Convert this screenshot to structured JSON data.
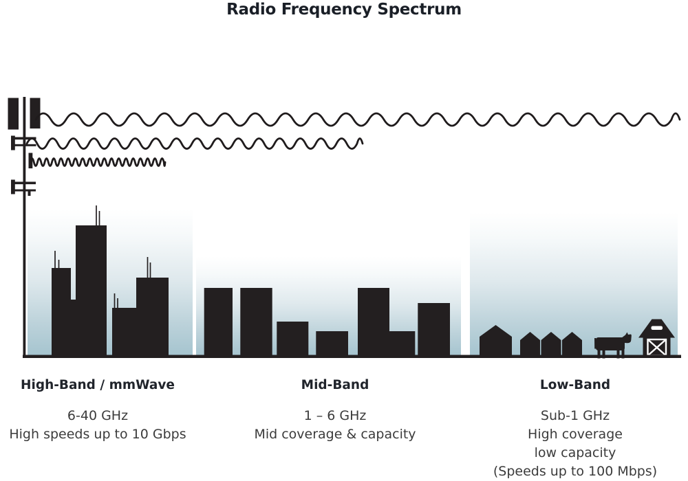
{
  "title": "Radio Frequency Spectrum",
  "bands": [
    {
      "id": "high-band",
      "label": "High-Band / mmWave",
      "lines": [
        "6-40 GHz",
        "High speeds up to 10 Gbps"
      ]
    },
    {
      "id": "mid-band",
      "label": "Mid-Band",
      "lines": [
        "1 – 6 GHz",
        "Mid coverage & capacity"
      ]
    },
    {
      "id": "low-band",
      "label": "Low-Band",
      "lines": [
        "Sub-1 GHz",
        "High coverage",
        "low capacity",
        "(Speeds up to 100 Mbps)"
      ]
    }
  ],
  "icons": {
    "tower": "cell-tower-icon",
    "waves": [
      "long-wavelength-wave-icon",
      "medium-wavelength-wave-icon",
      "short-wavelength-wave-icon"
    ],
    "high_band_art": "skyscrapers-icon",
    "mid_band_art": "midrise-buildings-icon",
    "low_band_art": [
      "houses-icon",
      "cow-icon",
      "barn-icon"
    ]
  },
  "colors": {
    "silhouette": "#231f20",
    "sky_gradient_top": "#ffffff",
    "sky_gradient_bottom": "#a5c4cf",
    "title_text": "#1a1f27",
    "body_text": "#3b3b3b"
  }
}
